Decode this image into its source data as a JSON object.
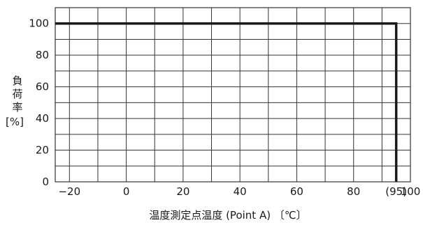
{
  "chart_data": {
    "type": "line",
    "title": "",
    "xlabel": "温度測定点温度 (Point A) 〔℃〕",
    "ylabel_chars": [
      "負",
      "荷",
      "率"
    ],
    "ylabel_unit": "[%]",
    "xlim": [
      -25,
      100
    ],
    "ylim": [
      0,
      110
    ],
    "x_ticks": [
      {
        "value": -20,
        "label": "−20"
      },
      {
        "value": 0,
        "label": "0"
      },
      {
        "value": 20,
        "label": "20"
      },
      {
        "value": 40,
        "label": "40"
      },
      {
        "value": 60,
        "label": "60"
      },
      {
        "value": 80,
        "label": "80"
      },
      {
        "value": 95,
        "label": "(95)"
      },
      {
        "value": 100,
        "label": "100"
      }
    ],
    "y_ticks": [
      {
        "value": 0,
        "label": "0"
      },
      {
        "value": 20,
        "label": "20"
      },
      {
        "value": 40,
        "label": "40"
      },
      {
        "value": 60,
        "label": "60"
      },
      {
        "value": 80,
        "label": "80"
      },
      {
        "value": 100,
        "label": "100"
      }
    ],
    "x_grid_step": 10,
    "y_grid_step": 10,
    "grid": true,
    "series": [
      {
        "x": [
          -25,
          95,
          95
        ],
        "y": [
          100,
          100,
          0
        ]
      }
    ],
    "colors": {
      "line": "#1a1a1a",
      "grid": "#333333",
      "text": "#1a1a1a"
    }
  }
}
